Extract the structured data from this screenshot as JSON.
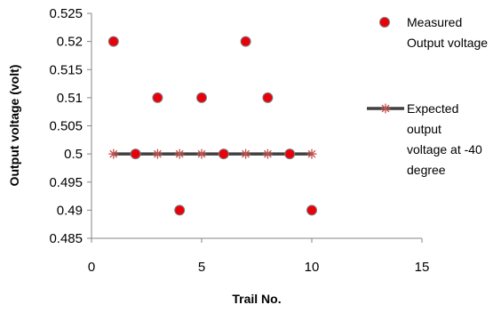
{
  "chart_data": {
    "type": "scatter",
    "xlabel": "Trail No.",
    "ylabel": "Output voltage  (volt)",
    "xlim": [
      0,
      15
    ],
    "ylim": [
      0.485,
      0.525
    ],
    "xticks": [
      0,
      5,
      10,
      15
    ],
    "xtick_labels": [
      "0",
      "5",
      "10",
      "15"
    ],
    "yticks": [
      0.485,
      0.49,
      0.495,
      0.5,
      0.505,
      0.51,
      0.515,
      0.52,
      0.525
    ],
    "ytick_labels": [
      "0.485",
      "0.49",
      "0.495",
      "0.5",
      "0.505",
      "0.51",
      "0.515",
      "0.52",
      "0.525"
    ],
    "grid": false,
    "legend_position": "right",
    "series": [
      {
        "name": "Measured Output voltage",
        "legend_lines": [
          "Measured",
          "Output voltage"
        ],
        "marker": "circle",
        "color": "#e8000b",
        "edge_color": "#7f7f7f",
        "x": [
          1,
          2,
          3,
          4,
          5,
          6,
          7,
          8,
          9,
          10
        ],
        "y": [
          0.52,
          0.5,
          0.51,
          0.49,
          0.51,
          0.5,
          0.52,
          0.51,
          0.5,
          0.49
        ]
      },
      {
        "name": "Expected output voltage at -40 degree",
        "legend_lines": [
          "Expected",
          "output",
          "voltage at -40",
          "degree"
        ],
        "marker": "star",
        "color": "#c0504d",
        "line_color": "#404040",
        "x": [
          1,
          2,
          3,
          4,
          5,
          6,
          7,
          8,
          9,
          10
        ],
        "y": [
          0.5,
          0.5,
          0.5,
          0.5,
          0.5,
          0.5,
          0.5,
          0.5,
          0.5,
          0.5
        ]
      }
    ]
  }
}
